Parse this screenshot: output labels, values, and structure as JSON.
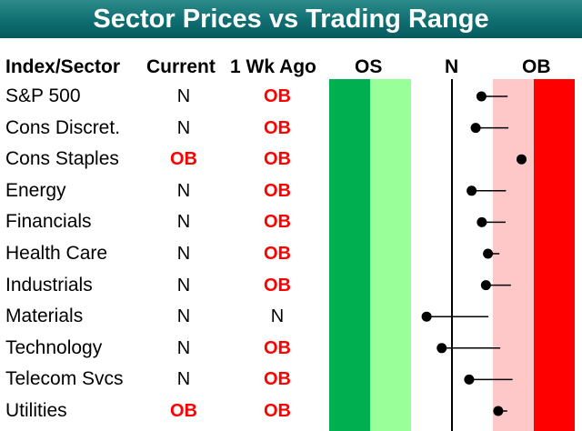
{
  "title": "Sector Prices vs Trading Range",
  "headers": {
    "sector": "Index/Sector",
    "current": "Current",
    "week_ago": "1 Wk Ago",
    "os": "OS",
    "n": "N",
    "ob": "OB"
  },
  "colors": {
    "title_bg": "#0f6e70",
    "dark_green": "#00b050",
    "light_green": "#99ff99",
    "light_red": "#ffc8c8",
    "red": "#ff0000",
    "ob_text": "#ff0000"
  },
  "rows": [
    {
      "sector": "S&P 500",
      "current": "N",
      "week_ago": "OB"
    },
    {
      "sector": "Cons Discret.",
      "current": "N",
      "week_ago": "OB"
    },
    {
      "sector": "Cons Staples",
      "current": "OB",
      "week_ago": "OB"
    },
    {
      "sector": "Energy",
      "current": "N",
      "week_ago": "OB"
    },
    {
      "sector": "Financials",
      "current": "N",
      "week_ago": "OB"
    },
    {
      "sector": "Health Care",
      "current": "N",
      "week_ago": "OB"
    },
    {
      "sector": "Industrials",
      "current": "N",
      "week_ago": "OB"
    },
    {
      "sector": "Materials",
      "current": "N",
      "week_ago": "N"
    },
    {
      "sector": "Technology",
      "current": "N",
      "week_ago": "OB"
    },
    {
      "sector": "Telecom Svcs",
      "current": "N",
      "week_ago": "OB"
    },
    {
      "sector": "Utilities",
      "current": "OB",
      "week_ago": "OB"
    }
  ],
  "chart_data": {
    "type": "scatter",
    "title": "Sector Prices vs Trading Range",
    "categories": [
      "S&P 500",
      "Cons Discret.",
      "Cons Staples",
      "Energy",
      "Financials",
      "Health Care",
      "Industrials",
      "Materials",
      "Technology",
      "Telecom Svcs",
      "Utilities"
    ],
    "x_scale": "standard deviations from 50-day moving average",
    "xlim": [
      -3,
      3
    ],
    "zones": [
      {
        "name": "OS",
        "from": -3,
        "to": -2,
        "color": "#00b050"
      },
      {
        "name": "OS",
        "from": -2,
        "to": -1,
        "color": "#99ff99"
      },
      {
        "name": "N",
        "from": -1,
        "to": 1,
        "color": "#ffffff"
      },
      {
        "name": "OB",
        "from": 1,
        "to": 2,
        "color": "#ffc8c8"
      },
      {
        "name": "OB",
        "from": 2,
        "to": 3,
        "color": "#ff0000"
      }
    ],
    "series": [
      {
        "values": [
          0.72,
          0.58,
          1.7,
          0.48,
          0.73,
          0.88,
          0.83,
          -0.62,
          -0.25,
          0.42,
          1.13
        ]
      },
      {
        "values": [
          1.36,
          1.38,
          1.79,
          1.32,
          1.31,
          1.16,
          1.44,
          0.89,
          1.18,
          1.48,
          1.35
        ]
      }
    ]
  }
}
